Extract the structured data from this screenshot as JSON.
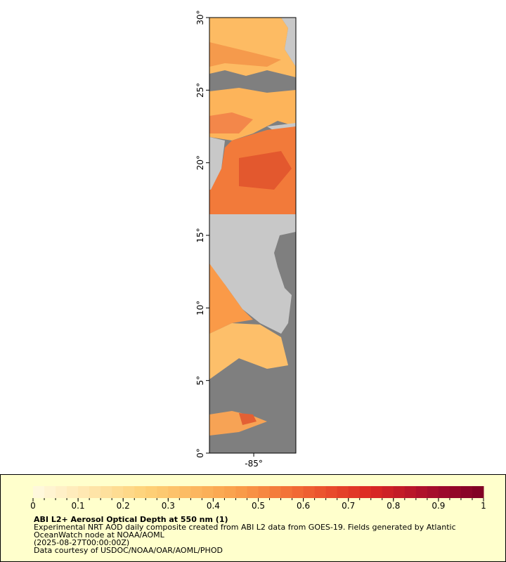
{
  "map": {
    "lat_ticks": [
      {
        "value": 0,
        "label": "0°"
      },
      {
        "value": 5,
        "label": "5°"
      },
      {
        "value": 10,
        "label": "10°"
      },
      {
        "value": 15,
        "label": "15°"
      },
      {
        "value": 20,
        "label": "20°"
      },
      {
        "value": 25,
        "label": "25°"
      },
      {
        "value": 30,
        "label": "30°"
      }
    ],
    "latlim": [
      0,
      30
    ],
    "lon_ticks": [
      {
        "value": -85,
        "label": "-85°"
      }
    ],
    "lonlim": [
      -88.05,
      -82.1
    ]
  },
  "colorbar": {
    "range": [
      0,
      1
    ],
    "ticks": [
      0,
      0.1,
      0.2,
      0.3,
      0.4,
      0.5,
      0.6,
      0.7,
      0.8,
      0.9,
      1
    ]
  },
  "caption": {
    "title": "ABI L2+ Aerosol Optical Depth at 550 nm (1)",
    "lines": [
      "Experimental NRT AOD daily composite created from ABI L2 data from GOES-19. Fields generated by Atlantic",
      "OceanWatch node at NOAA/AOML",
      "(2025-08-27T00:00:00Z)",
      "Data courtesy of USDOC/NOAA/OAR/AOML/PHOD"
    ]
  }
}
